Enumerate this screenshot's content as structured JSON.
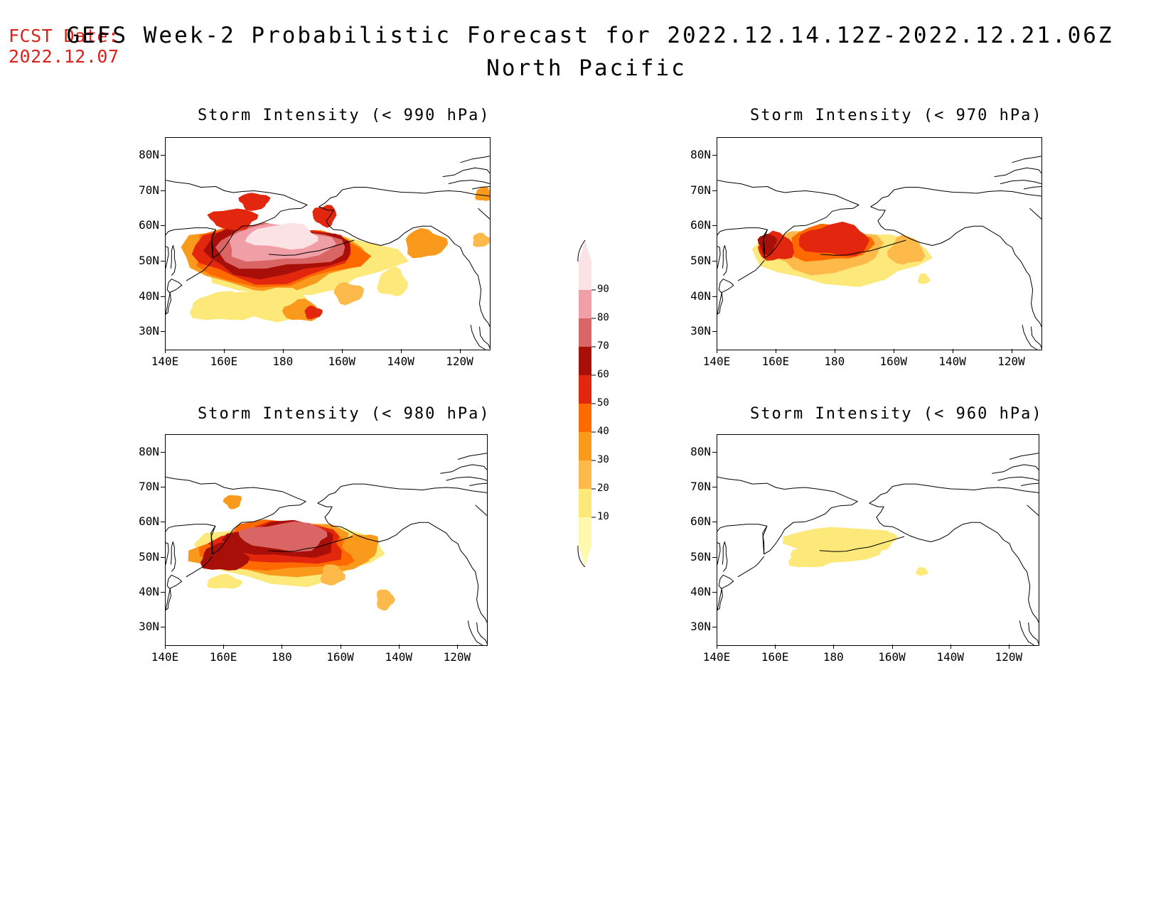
{
  "header": {
    "fcst_label": "FCST Date:",
    "fcst_date": "2022.12.07",
    "title": "GEFS Week-2 Probabilistic Forecast for 2022.12.14.12Z-2022.12.21.06Z",
    "subtitle": "North Pacific"
  },
  "axes": {
    "lat_labels": [
      "80N",
      "70N",
      "60N",
      "50N",
      "40N",
      "30N"
    ],
    "lon_labels": [
      "140E",
      "160E",
      "180",
      "160W",
      "140W",
      "120W"
    ]
  },
  "panels": [
    {
      "id": "p990",
      "title": "Storm Intensity (< 990 hPa)",
      "threshold_hpa": 990,
      "intensity": "high"
    },
    {
      "id": "p970",
      "title": "Storm Intensity (< 970 hPa)",
      "threshold_hpa": 970,
      "intensity": "medium"
    },
    {
      "id": "p980",
      "title": "Storm Intensity (< 980 hPa)",
      "threshold_hpa": 980,
      "intensity": "medium-high"
    },
    {
      "id": "p960",
      "title": "Storm Intensity (< 960 hPa)",
      "threshold_hpa": 960,
      "intensity": "low"
    }
  ],
  "colorbar": {
    "levels": [
      "10",
      "20",
      "30",
      "40",
      "50",
      "60",
      "70",
      "80",
      "90"
    ],
    "colors": [
      "#fff9b0",
      "#fde87a",
      "#fdb94a",
      "#f99a1c",
      "#ff6a00",
      "#e2270e",
      "#a80f08",
      "#d96565",
      "#ef9fa5",
      "#fbe2e4"
    ]
  }
}
